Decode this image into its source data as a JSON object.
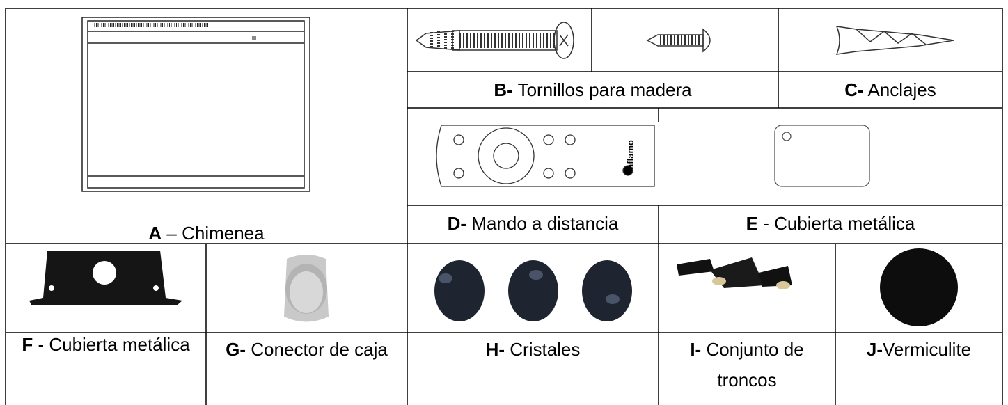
{
  "parts": [
    {
      "letter": "A",
      "label": "– Chimenea"
    },
    {
      "letter": "B-",
      "label": "Tornillos para madera"
    },
    {
      "letter": "C-",
      "label": "Anclajes"
    },
    {
      "letter": "D-",
      "label": "Mando a distancia"
    },
    {
      "letter": "E",
      "label": "- Cubierta metálica"
    },
    {
      "letter": "F",
      "label": "- Cubierta metálica"
    },
    {
      "letter": "G-",
      "label": "Conector de caja"
    },
    {
      "letter": "H-",
      "label": "Cristales"
    },
    {
      "letter": "I-",
      "label": "Conjunto de troncos"
    },
    {
      "letter": "J-",
      "label": "Vermiculite"
    }
  ],
  "remote_brand": "aflamo"
}
